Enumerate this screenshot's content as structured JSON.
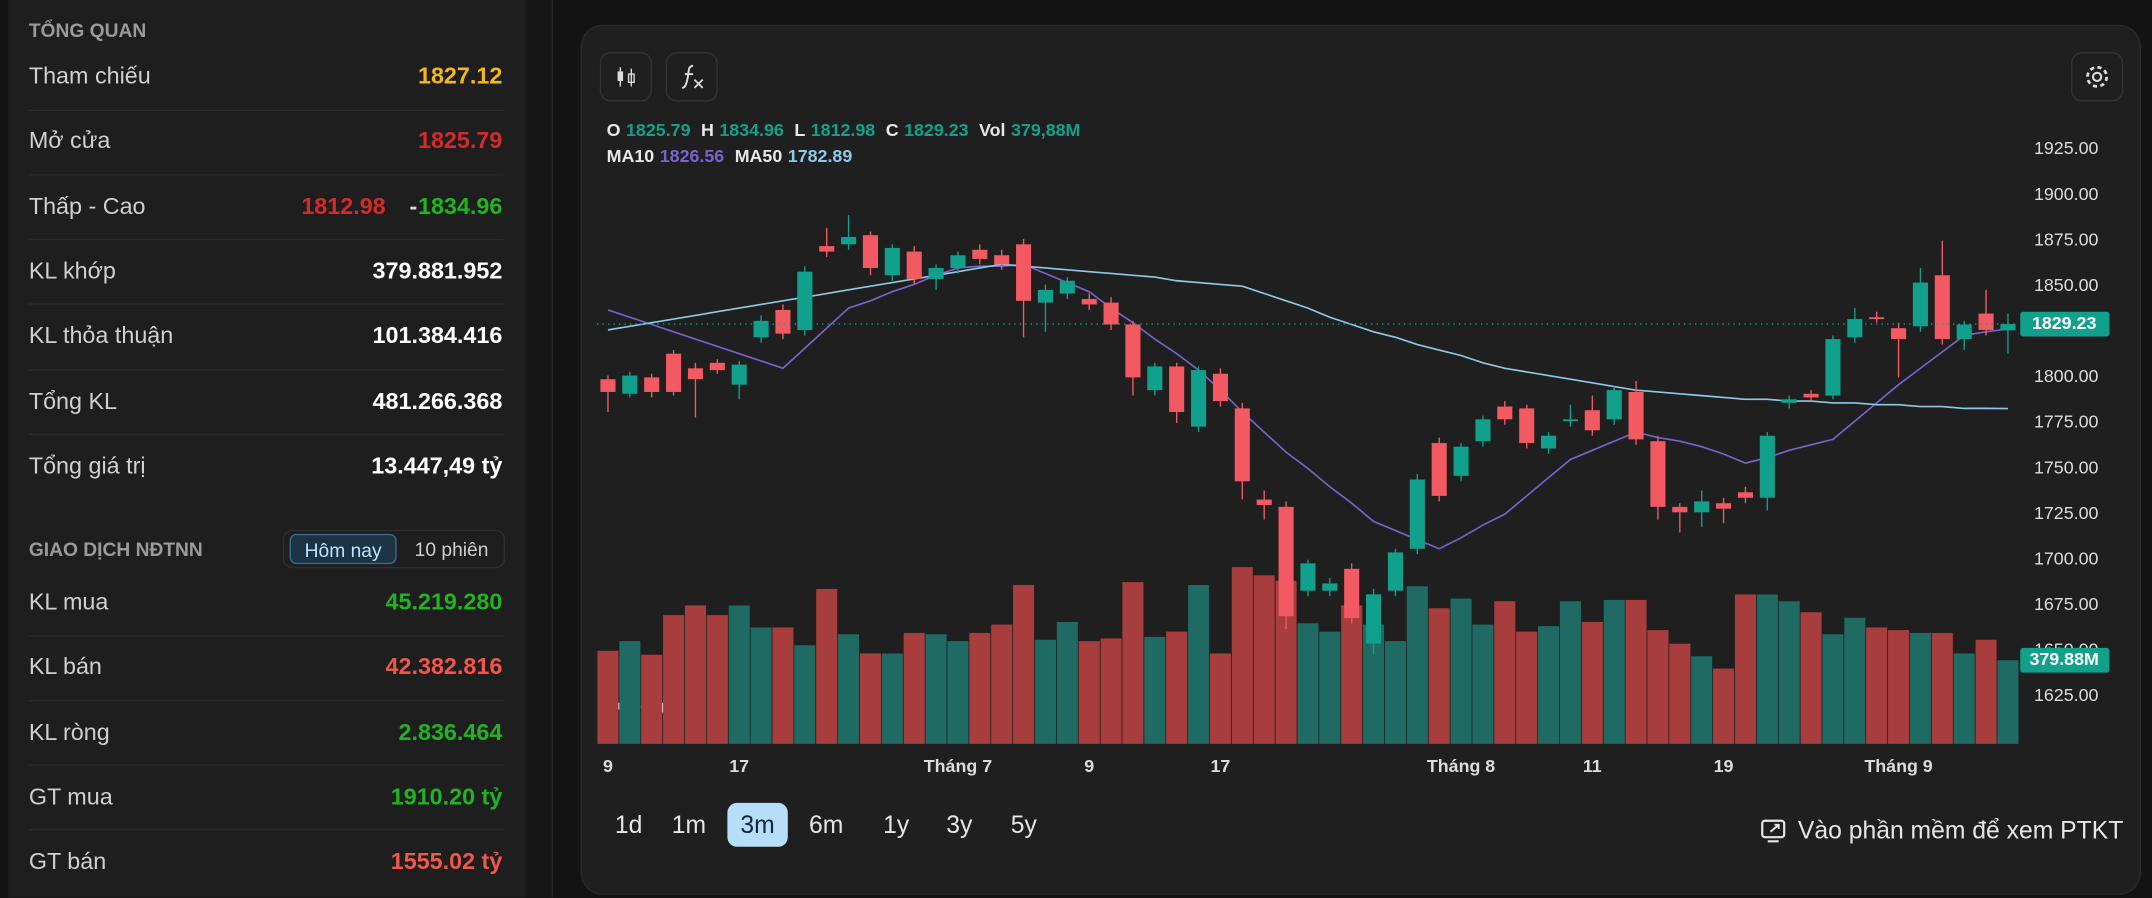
{
  "overview": {
    "title": "TỔNG QUAN",
    "rows": [
      {
        "label": "Tham chiếu",
        "value": "1827.12",
        "color": "#f5b915"
      },
      {
        "label": "Mở cửa",
        "value": "1825.79",
        "color": "#d42a2a"
      },
      {
        "label": "Thấp - Cao",
        "low": "1812.98",
        "separator": "-",
        "high": "1834.96",
        "low_color": "#d42a2a",
        "high_color": "#1fb51f"
      },
      {
        "label": "KL khớp",
        "value": "379.881.952",
        "color": "#ffffff"
      },
      {
        "label": "KL thỏa thuận",
        "value": "101.384.416",
        "color": "#ffffff"
      },
      {
        "label": "Tổng KL",
        "value": "481.266.368",
        "color": "#ffffff"
      },
      {
        "label": "Tổng giá trị",
        "value": "13.447,49 tỷ",
        "color": "#ffffff"
      }
    ]
  },
  "foreign": {
    "title": "GIAO DỊCH NĐTNN",
    "tabs": [
      "Hôm nay",
      "10 phiên"
    ],
    "active_tab": 0,
    "rows": [
      {
        "label": "KL mua",
        "value": "45.219.280",
        "color": "#22b322"
      },
      {
        "label": "KL bán",
        "value": "42.382.816",
        "color": "#f0584a"
      },
      {
        "label": "KL ròng",
        "value": "2.836.464",
        "color": "#22b322"
      },
      {
        "label": "GT mua",
        "value": "1910.20 tỷ",
        "color": "#22b322"
      },
      {
        "label": "GT bán",
        "value": "1555.02 tỷ",
        "color": "#f0584a"
      }
    ]
  },
  "ranges": [
    "1d",
    "1m",
    "3m",
    "6m",
    "1y",
    "3y",
    "5y"
  ],
  "active_range": 2,
  "software_link": "Vào phần mềm để xem PTKT",
  "chart_data": {
    "type": "candlestick",
    "ohlc_names": [
      "O",
      "H",
      "L",
      "C",
      "Vol"
    ],
    "volume_label": "379,88M",
    "volume_tag_label": "379.88M",
    "up_color": "#10a08b",
    "down_color": "#f25961",
    "volume_up_color": "#1f6b63",
    "volume_down_color": "#a83d3d",
    "categories": [
      "9",
      null,
      null,
      null,
      null,
      null,
      "17",
      null,
      null,
      null,
      null,
      null,
      null,
      null,
      null,
      null,
      "Tháng 7",
      null,
      null,
      null,
      null,
      null,
      "9",
      null,
      null,
      null,
      null,
      null,
      "17",
      null,
      null,
      null,
      null,
      null,
      null,
      null,
      null,
      null,
      null,
      "Tháng 8",
      null,
      null,
      null,
      null,
      null,
      "11",
      null,
      null,
      null,
      null,
      null,
      "19",
      null,
      null,
      null,
      null,
      null,
      null,
      null,
      "Tháng 9",
      null,
      null,
      null,
      null,
      null
    ],
    "open": [
      1799,
      1791,
      1800,
      1813,
      1805,
      1808,
      1796,
      1822,
      1837,
      1826,
      1872,
      1873,
      1878,
      1856,
      1869,
      1854,
      1860,
      1870,
      1867,
      1873,
      1841,
      1846,
      1843,
      1841,
      1829,
      1793,
      1806,
      1773,
      1802,
      1783,
      1733,
      1729,
      1683,
      1683,
      1695,
      1654,
      1683,
      1706,
      1764,
      1746,
      1765,
      1784,
      1783,
      1761,
      1776,
      1782,
      1777,
      1792,
      1765,
      1729,
      1726,
      1731,
      1737,
      1734,
      1786,
      1791,
      1790,
      1822,
      1833,
      1827,
      1828,
      1856,
      1821,
      1835,
      1825.79
    ],
    "high": [
      1801,
      1803,
      1802,
      1815,
      1808,
      1810,
      1809,
      1834,
      1840,
      1861,
      1882,
      1889,
      1880,
      1873,
      1872,
      1862,
      1869,
      1873,
      1870,
      1876,
      1851,
      1855,
      1846,
      1844,
      1831,
      1808,
      1808,
      1806,
      1805,
      1786,
      1738,
      1732,
      1700,
      1690,
      1698,
      1684,
      1706,
      1747,
      1767,
      1764,
      1779,
      1787,
      1785,
      1770,
      1785,
      1790,
      1795,
      1798,
      1768,
      1731,
      1738,
      1734,
      1740,
      1770,
      1790,
      1793,
      1823,
      1838,
      1836,
      1830,
      1860,
      1875,
      1831,
      1848,
      1834.96
    ],
    "low": [
      1781,
      1789,
      1789,
      1790,
      1778,
      1802,
      1788,
      1819,
      1821,
      1823,
      1866,
      1870,
      1856,
      1853,
      1851,
      1848,
      1857,
      1862,
      1859,
      1822,
      1825,
      1843,
      1837,
      1826,
      1790,
      1790,
      1775,
      1770,
      1784,
      1733,
      1722,
      1662,
      1680,
      1680,
      1665,
      1648,
      1680,
      1703,
      1732,
      1743,
      1762,
      1774,
      1761,
      1758,
      1773,
      1768,
      1774,
      1763,
      1722,
      1715,
      1718,
      1720,
      1731,
      1727,
      1783,
      1787,
      1788,
      1819,
      1830,
      1800,
      1825,
      1818,
      1815,
      1823,
      1812.98
    ],
    "close": [
      1792,
      1801,
      1792,
      1792,
      1799,
      1804,
      1807,
      1831,
      1824,
      1858,
      1869,
      1877,
      1860,
      1871,
      1854,
      1860,
      1867,
      1865,
      1862,
      1842,
      1848,
      1853,
      1840,
      1829,
      1800,
      1806,
      1781,
      1804,
      1787,
      1743,
      1730,
      1669,
      1698,
      1687,
      1668,
      1681,
      1704,
      1744,
      1735,
      1762,
      1777,
      1777,
      1764,
      1768,
      1777,
      1771,
      1793,
      1766,
      1729,
      1726,
      1732,
      1728,
      1734,
      1768,
      1788,
      1789,
      1821,
      1832,
      1832,
      1821,
      1852,
      1821,
      1829,
      1826,
      1829.23
    ],
    "volume": [
      423,
      467,
      405,
      585,
      629,
      585,
      629,
      529,
      529,
      448,
      704,
      498,
      411,
      411,
      504,
      498,
      467,
      504,
      542,
      722,
      473,
      554,
      467,
      479,
      735,
      486,
      510,
      722,
      411,
      803,
      766,
      741,
      548,
      510,
      629,
      542,
      467,
      716,
      616,
      660,
      542,
      648,
      510,
      535,
      648,
      554,
      654,
      654,
      517,
      455,
      398,
      342,
      679,
      679,
      648,
      598,
      498,
      573,
      529,
      517,
      504,
      504,
      411,
      473,
      379.88
    ],
    "volume_lim": [
      0,
      2850
    ],
    "ma_series": [
      {
        "name": "MA10",
        "color": "#7a62c9",
        "values": [
          1837,
          1833,
          1829,
          1825,
          1821,
          1817,
          1813,
          1809,
          1805,
          1816,
          1827,
          1838,
          1842,
          1847,
          1851,
          1856,
          1860,
          1861,
          1861,
          1862,
          1857,
          1852,
          1847,
          1838,
          1830,
          1821,
          1813,
          1804,
          1793,
          1781,
          1770,
          1759,
          1750,
          1740,
          1731,
          1721,
          1716,
          1711,
          1706,
          1712,
          1719,
          1725,
          1735,
          1745,
          1755,
          1760,
          1765,
          1770,
          1767,
          1765,
          1762,
          1758,
          1753,
          1756,
          1760,
          1763,
          1766,
          1776,
          1786,
          1796,
          1805,
          1814,
          1823,
          1825,
          1826.56
        ]
      },
      {
        "name": "MA50",
        "color": "#8ec8e6",
        "values": [
          1826,
          1828,
          1830,
          1832,
          1834,
          1836,
          1838,
          1840,
          1842,
          1844,
          1846,
          1848,
          1850,
          1852,
          1854,
          1856,
          1858,
          1860,
          1862,
          1861,
          1860,
          1859,
          1858,
          1857,
          1856,
          1855,
          1853,
          1852,
          1851,
          1850,
          1846,
          1842,
          1838,
          1833,
          1829,
          1825,
          1822,
          1818,
          1815,
          1812,
          1808,
          1805,
          1803,
          1801,
          1799,
          1797,
          1795,
          1793,
          1792,
          1791,
          1790,
          1789,
          1788,
          1788,
          1787,
          1787,
          1786,
          1786,
          1785,
          1785,
          1784,
          1784,
          1783,
          1783,
          1782.89
        ]
      }
    ],
    "ylim": [
      1599,
      1943
    ],
    "yticks": [
      {
        "value": 1625,
        "label": "1625.00"
      },
      {
        "value": 1650,
        "label": "1650.00"
      },
      {
        "value": 1675,
        "label": "1675.00"
      },
      {
        "value": 1700,
        "label": "1700.00"
      },
      {
        "value": 1725,
        "label": "1725.00"
      },
      {
        "value": 1750,
        "label": "1750.00"
      },
      {
        "value": 1775,
        "label": "1775.00"
      },
      {
        "value": 1800,
        "label": "1800.00"
      },
      {
        "value": 1825,
        "label": "1825.00"
      },
      {
        "value": 1850,
        "label": "1850.00"
      },
      {
        "value": 1875,
        "label": "1875.00"
      },
      {
        "value": 1900,
        "label": "1900.00"
      },
      {
        "value": 1925,
        "label": "1925.00"
      }
    ],
    "grid": false
  }
}
